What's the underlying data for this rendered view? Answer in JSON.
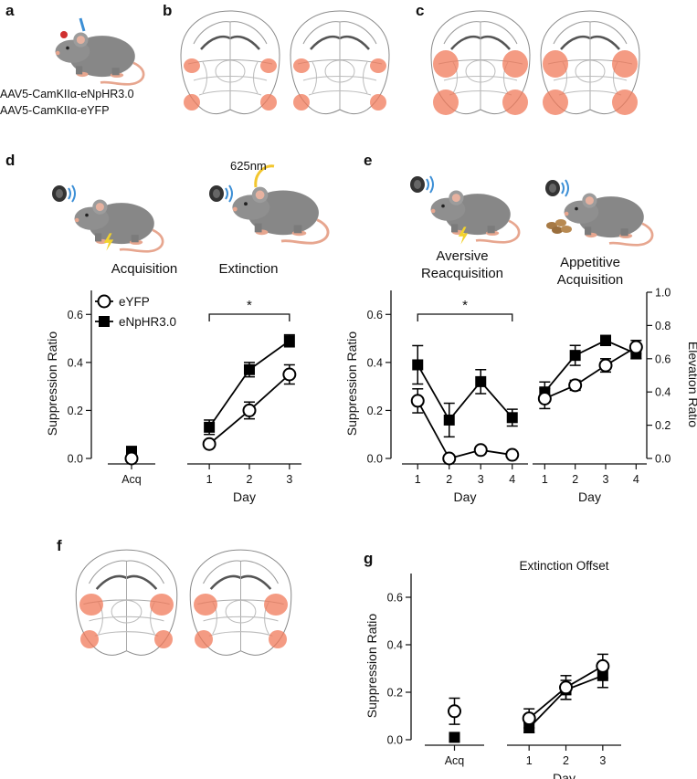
{
  "panel_labels": [
    "a",
    "b",
    "c",
    "d",
    "e",
    "f",
    "g"
  ],
  "virus_labels": [
    "AAV5-CamKIIα-eNpHR3.0",
    "AAV5-CamKIIα-eYFP"
  ],
  "light_label": "625nm",
  "phase_labels": [
    "Acquisition",
    "Extinction",
    "Aversive Reacquisition",
    "Appetitive Acquisition"
  ],
  "chart_data": [
    {
      "type": "line",
      "ylabel": "Suppression Ratio",
      "xlabel": "Day",
      "acq_label": "Acq",
      "ylim": [
        0,
        0.7
      ],
      "yticks": [
        {
          "value": 0,
          "label": "0.0"
        },
        {
          "value": 0.2,
          "label": "0.2"
        },
        {
          "value": 0.4,
          "label": "0.4"
        },
        {
          "value": 0.6,
          "label": "0.6"
        }
      ],
      "x": [
        1,
        2,
        3
      ],
      "xlim": [
        0.45,
        3.3
      ],
      "xticks": [
        1,
        2,
        3
      ],
      "legend": "upper left",
      "significance": "*",
      "significance_span": [
        1,
        3
      ],
      "series": [
        {
          "name": "eYFP",
          "color": "#000000",
          "marker": "open-circle",
          "acq_value": 0.0,
          "acq_error": 0.01,
          "values": [
            0.06,
            0.2,
            0.35
          ],
          "errors": [
            0.01,
            0.035,
            0.04
          ]
        },
        {
          "name": "eNpHR3.0",
          "color": "#000000",
          "marker": "square",
          "acq_value": 0.03,
          "acq_error": 0.01,
          "values": [
            0.13,
            0.37,
            0.49
          ],
          "errors": [
            0.03,
            0.03,
            0.025
          ]
        }
      ]
    },
    {
      "type": "line",
      "ylabel": "Suppression Ratio",
      "xlabel": "Day",
      "ylim": [
        0,
        0.7
      ],
      "yticks": [
        {
          "value": 0,
          "label": "0.0"
        },
        {
          "value": 0.2,
          "label": "0.2"
        },
        {
          "value": 0.4,
          "label": "0.4"
        },
        {
          "value": 0.6,
          "label": "0.6"
        }
      ],
      "x": [
        1,
        2,
        3,
        4
      ],
      "xlim": [
        0.5,
        4.5
      ],
      "xticks": [
        1,
        2,
        3,
        4
      ],
      "significance": "*",
      "significance_span": [
        1,
        4
      ],
      "series": [
        {
          "name": "eYFP",
          "color": "#000000",
          "marker": "open-circle",
          "values": [
            0.24,
            0.0,
            0.035,
            0.015
          ],
          "errors": [
            0.05,
            0.005,
            0.015,
            0.01
          ]
        },
        {
          "name": "eNpHR3.0",
          "color": "#000000",
          "marker": "square",
          "values": [
            0.39,
            0.16,
            0.32,
            0.17
          ],
          "errors": [
            0.08,
            0.07,
            0.05,
            0.035
          ]
        }
      ]
    },
    {
      "type": "line",
      "y2label": "Elevation Ratio",
      "xlabel": "Day",
      "y2lim": [
        0,
        1.0
      ],
      "y2ticks": [
        {
          "value": 0,
          "label": "0.0"
        },
        {
          "value": 0.2,
          "label": "0.2"
        },
        {
          "value": 0.4,
          "label": "0.4"
        },
        {
          "value": 0.6,
          "label": "0.6"
        },
        {
          "value": 0.8,
          "label": "0.8"
        },
        {
          "value": 1.0,
          "label": "1.0"
        }
      ],
      "x": [
        1,
        2,
        3,
        4
      ],
      "xlim": [
        0.6,
        4.35
      ],
      "xticks": [
        1,
        2,
        3,
        4
      ],
      "series": [
        {
          "name": "eYFP",
          "color": "#000000",
          "marker": "open-circle",
          "axis": "y2",
          "values": [
            0.36,
            0.44,
            0.56,
            0.67
          ],
          "errors": [
            0.06,
            0.03,
            0.04,
            0.04
          ]
        },
        {
          "name": "eNpHR3.0",
          "color": "#000000",
          "marker": "square",
          "axis": "y2",
          "values": [
            0.4,
            0.62,
            0.71,
            0.63
          ],
          "errors": [
            0.06,
            0.06,
            0.03,
            0.03
          ]
        }
      ]
    },
    {
      "type": "line",
      "title": "Extinction Offset",
      "ylabel": "Suppression Ratio",
      "xlabel": "Day",
      "acq_label": "Acq",
      "ylim": [
        0,
        0.7
      ],
      "yticks": [
        {
          "value": 0,
          "label": "0.0"
        },
        {
          "value": 0.2,
          "label": "0.2"
        },
        {
          "value": 0.4,
          "label": "0.4"
        },
        {
          "value": 0.6,
          "label": "0.6"
        }
      ],
      "x": [
        1,
        2,
        3
      ],
      "xlim": [
        0.4,
        3.5
      ],
      "xticks": [
        1,
        2,
        3
      ],
      "series": [
        {
          "name": "eYFP",
          "color": "#000000",
          "marker": "open-circle",
          "acq_value": 0.12,
          "acq_error": 0.055,
          "values": [
            0.09,
            0.22,
            0.31
          ],
          "errors": [
            0.04,
            0.05,
            0.05
          ]
        },
        {
          "name": "eNpHR3.0",
          "color": "#000000",
          "marker": "square",
          "acq_value": 0.01,
          "acq_error": 0.005,
          "values": [
            0.05,
            0.21,
            0.27
          ],
          "errors": [
            0.02,
            0.04,
            0.05
          ]
        }
      ]
    }
  ]
}
